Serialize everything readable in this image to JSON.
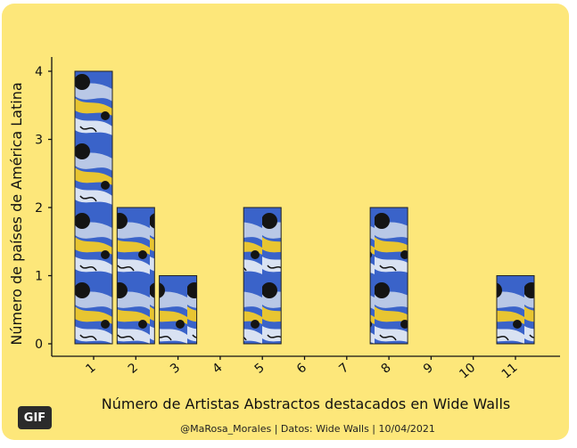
{
  "chart_data": {
    "type": "bar",
    "categories": [
      "1",
      "2",
      "3",
      "4",
      "5",
      "6",
      "7",
      "8",
      "9",
      "10",
      "11"
    ],
    "values": [
      4,
      2,
      1,
      0,
      2,
      0,
      0,
      2,
      0,
      0,
      1
    ],
    "xlabel": "Número de Artistas Abstractos destacados en Wide Walls",
    "ylabel": "Número de países de América Latina",
    "ylim": [
      0,
      4
    ],
    "yticks": [
      0,
      1,
      2,
      3,
      4
    ],
    "grid": false,
    "caption": "@MaRosa_Morales  |  Datos: Wide Walls  | 10/04/2021"
  },
  "colors": {
    "background": "#fde77a",
    "pattern_blue": "#3a63c9",
    "pattern_light": "#b9c8e6",
    "pattern_yellow": "#e8c531",
    "pattern_dark": "#141414"
  },
  "badge": {
    "label": "GIF"
  }
}
